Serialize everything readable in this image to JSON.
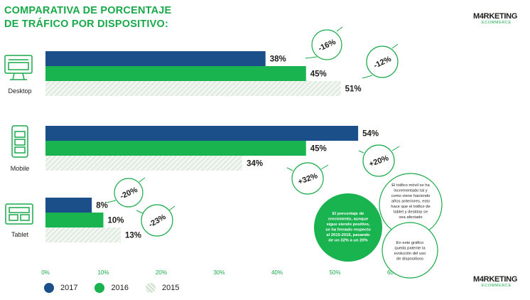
{
  "title_lines": [
    "COMPARATIVA DE PORCENTAJE",
    "DE TRÁFICO POR DISPOSITIVO:"
  ],
  "logo": {
    "main": "M4RKETING",
    "sub": "ECOMMERCE"
  },
  "colors": {
    "2017": "#1a4f8a",
    "2016": "#19b34f",
    "2015": "#e4ede4",
    "accent": "#19a94a"
  },
  "chart_data": {
    "type": "bar",
    "orientation": "horizontal",
    "categories": [
      "Desktop",
      "Mobile",
      "Tablet"
    ],
    "series": [
      {
        "name": "2017",
        "values": [
          38,
          54,
          8
        ]
      },
      {
        "name": "2016",
        "values": [
          45,
          45,
          10
        ]
      },
      {
        "name": "2015",
        "values": [
          51,
          34,
          13
        ]
      }
    ],
    "value_labels": [
      [
        "38%",
        "45%",
        "51%"
      ],
      [
        "54%",
        "45%",
        "34%"
      ],
      [
        "8%",
        "10%",
        "13%"
      ]
    ],
    "x_ticks": [
      "0%",
      "10%",
      "20%",
      "30%",
      "40%",
      "50%",
      "60%"
    ],
    "xlim": [
      0,
      60
    ],
    "legend_position": "bottom-left",
    "annotations": [
      {
        "text": "-16%",
        "category": "Desktop",
        "type": "decrease"
      },
      {
        "text": "-12%",
        "category": "Desktop",
        "type": "decrease"
      },
      {
        "text": "+20%",
        "category": "Mobile",
        "type": "increase"
      },
      {
        "text": "+32%",
        "category": "Mobile",
        "type": "increase"
      },
      {
        "text": "-20%",
        "category": "Tablet",
        "type": "decrease"
      },
      {
        "text": "-23%",
        "category": "Tablet",
        "type": "decrease"
      }
    ]
  },
  "notes": {
    "green_bubble": [
      "El porcentaje de",
      "crecimiento, aunque",
      "sigue siendo positivo,",
      "se ha frenado respecto",
      "al 2015-2016, pasando",
      "de un 32% a un 20%"
    ],
    "outline_bubble_1": [
      "El tráfico móvil se ha",
      "incrementado tal y",
      "como viene haciendo",
      "años anteriores, esto",
      "hace que el tráfico de",
      "tablet y desktop se",
      "vea afectado"
    ],
    "outline_bubble_2": [
      "En este gráfico",
      "queda patente la",
      "evolución del uso",
      "de dispositivos"
    ]
  }
}
